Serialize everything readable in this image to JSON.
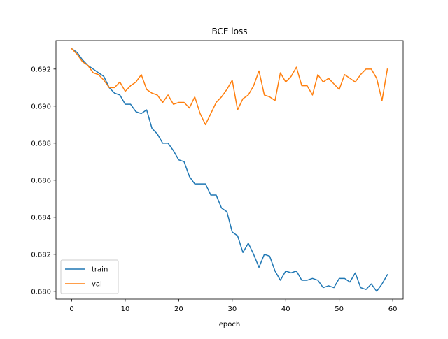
{
  "chart_data": {
    "type": "line",
    "title": "BCE loss",
    "xlabel": "epoch",
    "ylabel": "",
    "xlim": [
      -2.95,
      61.95
    ],
    "ylim": [
      0.67958,
      0.69354
    ],
    "grid": false,
    "legend_position": "lower-left",
    "xticks": [
      0,
      10,
      20,
      30,
      40,
      50,
      60
    ],
    "xtick_labels": [
      "0",
      "10",
      "20",
      "30",
      "40",
      "50",
      "60"
    ],
    "yticks": [
      0.68,
      0.682,
      0.684,
      0.686,
      0.688,
      0.69,
      0.692
    ],
    "ytick_labels": [
      "0.680",
      "0.682",
      "0.684",
      "0.686",
      "0.688",
      "0.690",
      "0.692"
    ],
    "x": [
      0,
      1,
      2,
      3,
      4,
      5,
      6,
      7,
      8,
      9,
      10,
      11,
      12,
      13,
      14,
      15,
      16,
      17,
      18,
      19,
      20,
      21,
      22,
      23,
      24,
      25,
      26,
      27,
      28,
      29,
      30,
      31,
      32,
      33,
      34,
      35,
      36,
      37,
      38,
      39,
      40,
      41,
      42,
      43,
      44,
      45,
      46,
      47,
      48,
      49,
      50,
      51,
      52,
      53,
      54,
      55,
      56,
      57,
      58,
      59
    ],
    "series": [
      {
        "name": "train",
        "color": "#1f77b4",
        "values": [
          0.6931,
          0.6929,
          0.6925,
          0.6922,
          0.692,
          0.6918,
          0.6916,
          0.691,
          0.6907,
          0.6906,
          0.6901,
          0.6901,
          0.6897,
          0.6896,
          0.6898,
          0.6888,
          0.6885,
          0.688,
          0.688,
          0.6876,
          0.6871,
          0.687,
          0.6862,
          0.6858,
          0.6858,
          0.6858,
          0.6852,
          0.6852,
          0.6845,
          0.6843,
          0.6832,
          0.683,
          0.6821,
          0.6826,
          0.682,
          0.6813,
          0.682,
          0.6819,
          0.6811,
          0.6806,
          0.6811,
          0.681,
          0.6811,
          0.6806,
          0.6806,
          0.6807,
          0.6806,
          0.6802,
          0.6803,
          0.6802,
          0.6807,
          0.6807,
          0.6805,
          0.681,
          0.6802,
          0.6801,
          0.6804,
          0.68,
          0.6804,
          0.6809
        ]
      },
      {
        "name": "val",
        "color": "#ff7f0e",
        "values": [
          0.6931,
          0.6928,
          0.6924,
          0.6922,
          0.6918,
          0.6917,
          0.6914,
          0.691,
          0.691,
          0.6913,
          0.6908,
          0.6911,
          0.6913,
          0.6917,
          0.6909,
          0.6907,
          0.6906,
          0.6902,
          0.6906,
          0.6901,
          0.6902,
          0.6902,
          0.6899,
          0.6905,
          0.6896,
          0.689,
          0.6896,
          0.6902,
          0.6905,
          0.6909,
          0.6914,
          0.6898,
          0.6904,
          0.6906,
          0.6911,
          0.6919,
          0.6906,
          0.6905,
          0.6903,
          0.6918,
          0.6913,
          0.6916,
          0.6921,
          0.6911,
          0.6911,
          0.6906,
          0.6917,
          0.6913,
          0.6915,
          0.6912,
          0.6909,
          0.6917,
          0.6915,
          0.6913,
          0.6917,
          0.692,
          0.692,
          0.6915,
          0.6903,
          0.692
        ]
      }
    ]
  }
}
